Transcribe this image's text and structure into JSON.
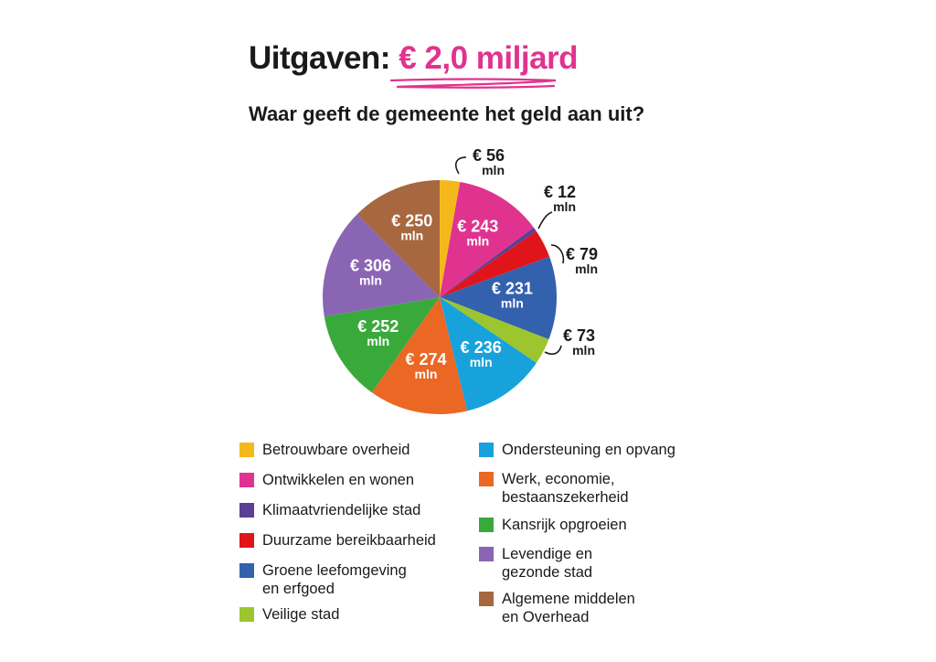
{
  "header": {
    "title_prefix": "Uitgaven:",
    "title_amount": "€ 2,0 miljard",
    "subtitle": "Waar geeft de gemeente het geld aan uit?"
  },
  "chart_data": {
    "type": "pie",
    "title": "Uitgaven: € 2,0 miljard",
    "subtitle": "Waar geeft de gemeente het geld aan uit?",
    "unit": "mln",
    "slices": [
      {
        "name": "Betrouwbare overheid",
        "value": 56,
        "label": "€ 56",
        "color": "#f5b81c"
      },
      {
        "name": "Ontwikkelen en wonen",
        "value": 243,
        "label": "€ 243",
        "color": "#e0338f"
      },
      {
        "name": "Klimaatvriendelijke stad",
        "value": 12,
        "label": "€ 12",
        "color": "#5b3f96"
      },
      {
        "name": "Duurzame bereikbaarheid",
        "value": 79,
        "label": "€ 79",
        "color": "#e0141b"
      },
      {
        "name": "Groene leefomgeving\nen erfgoed",
        "value": 231,
        "label": "€ 231",
        "color": "#3461ae"
      },
      {
        "name": "Veilige stad",
        "value": 73,
        "label": "€ 73",
        "color": "#9dc52e"
      },
      {
        "name": "Ondersteuning en opvang",
        "value": 236,
        "label": "€ 236",
        "color": "#17a2db"
      },
      {
        "name": "Werk, economie,\nbestaanszekerheid",
        "value": 274,
        "label": "€ 274",
        "color": "#eb6724"
      },
      {
        "name": "Kansrijk opgroeien",
        "value": 252,
        "label": "€ 252",
        "color": "#3aa93b"
      },
      {
        "name": "Levendige en\ngezonde stad",
        "value": 306,
        "label": "€ 306",
        "color": "#8a65b3"
      },
      {
        "name": "Algemene middelen\nen Overhead",
        "value": 250,
        "label": "€ 250",
        "color": "#a7673f"
      }
    ],
    "legend_placement": "bottom"
  }
}
